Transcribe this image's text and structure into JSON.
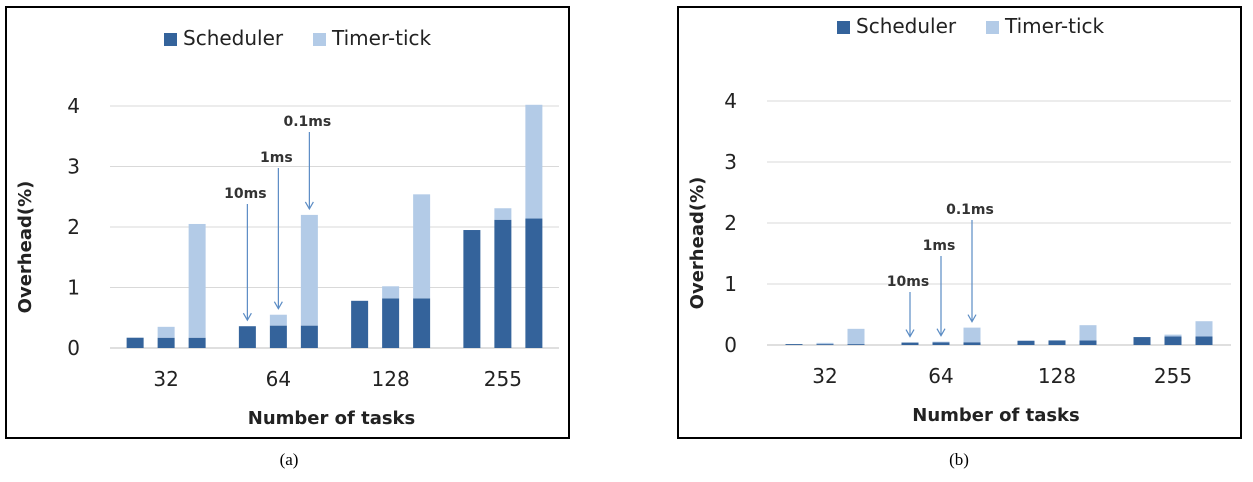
{
  "colors": {
    "scheduler": "#34639b",
    "timer_tick": "#b3cbe7",
    "grid": "#d9d9d9",
    "annotation": "#5b8cc4"
  },
  "charts": [
    {
      "id": "a",
      "caption": "(a)",
      "chart_data": {
        "type": "bar",
        "stacked": true,
        "legend_position": "top",
        "grid": true,
        "xlabel": "Number of tasks",
        "ylabel": "Overhead(%)",
        "ylim": [
          0,
          4
        ],
        "yticks": [
          "0",
          "1",
          "2",
          "3",
          "4"
        ],
        "categories": [
          "32",
          "64",
          "128",
          "255"
        ],
        "bar_labels": [
          "10ms",
          "1ms",
          "0.1ms"
        ],
        "series": [
          {
            "name": "Scheduler",
            "values": [
              [
                0.17,
                0.17,
                0.17
              ],
              [
                0.36,
                0.37,
                0.37
              ],
              [
                0.78,
                0.82,
                0.82
              ],
              [
                1.95,
                2.12,
                2.14
              ]
            ]
          },
          {
            "name": "Timer-tick",
            "values": [
              [
                0.0,
                0.18,
                1.88
              ],
              [
                0.0,
                0.18,
                1.83
              ],
              [
                0.0,
                0.2,
                1.72
              ],
              [
                0.0,
                0.19,
                1.88
              ]
            ]
          }
        ],
        "annotations": [
          {
            "text": "10ms",
            "category": "64",
            "bar": 0
          },
          {
            "text": "1ms",
            "category": "64",
            "bar": 1
          },
          {
            "text": "0.1ms",
            "category": "64",
            "bar": 2
          }
        ]
      }
    },
    {
      "id": "b",
      "caption": "(b)",
      "chart_data": {
        "type": "bar",
        "stacked": true,
        "legend_position": "top",
        "grid": true,
        "xlabel": "Number of tasks",
        "ylabel": "Overhead(%)",
        "ylim": [
          0,
          4
        ],
        "yticks": [
          "0",
          "1",
          "2",
          "3",
          "4"
        ],
        "categories": [
          "32",
          "64",
          "128",
          "255"
        ],
        "bar_labels": [
          "10ms",
          "1ms",
          "0.1ms"
        ],
        "series": [
          {
            "name": "Scheduler",
            "values": [
              [
                0.015,
                0.015,
                0.015
              ],
              [
                0.04,
                0.045,
                0.045
              ],
              [
                0.07,
                0.075,
                0.075
              ],
              [
                0.13,
                0.14,
                0.14
              ]
            ]
          },
          {
            "name": "Timer-tick",
            "values": [
              [
                0.0,
                0.02,
                0.25
              ],
              [
                0.0,
                0.01,
                0.24
              ],
              [
                0.0,
                0.0,
                0.25
              ],
              [
                0.0,
                0.03,
                0.25
              ]
            ]
          }
        ],
        "annotations": [
          {
            "text": "10ms",
            "category": "64",
            "bar": 0
          },
          {
            "text": "1ms",
            "category": "64",
            "bar": 1
          },
          {
            "text": "0.1ms",
            "category": "64",
            "bar": 2
          }
        ]
      }
    }
  ]
}
